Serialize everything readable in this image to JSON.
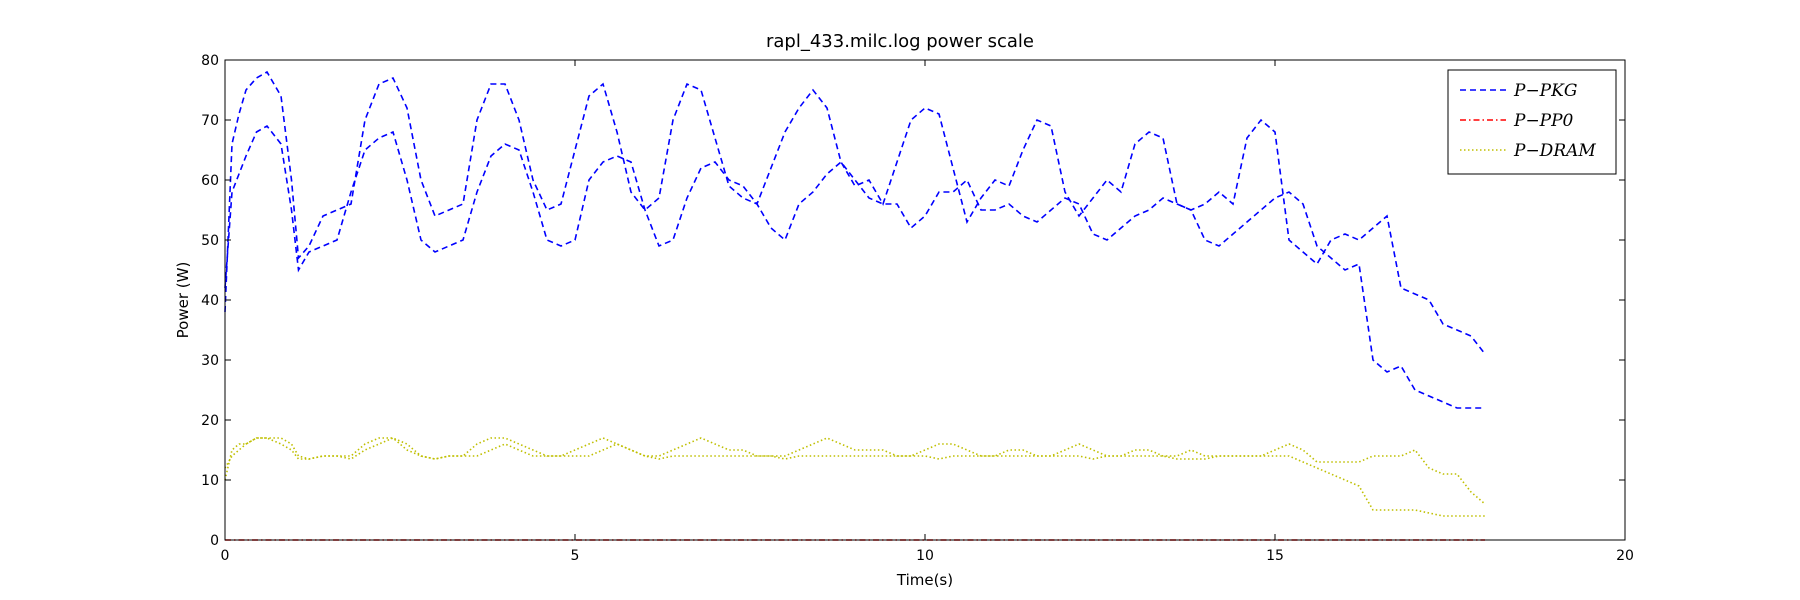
{
  "chart_data": {
    "type": "line",
    "title": "rapl_433.milc.log power scale",
    "xlabel": "Time(s)",
    "ylabel": "Power (W)",
    "xlim": [
      0,
      20
    ],
    "ylim": [
      0,
      80
    ],
    "xticks": [
      0,
      5,
      10,
      15,
      20
    ],
    "yticks": [
      0,
      10,
      20,
      30,
      40,
      50,
      60,
      70,
      80
    ],
    "grid": false,
    "legend_position": "top-right",
    "series": [
      {
        "name": "P−PKG",
        "color": "#0000ff",
        "style": "dashed",
        "x": [
          0,
          0.1,
          0.2,
          0.3,
          0.45,
          0.6,
          0.8,
          0.95,
          1.05,
          1.2,
          1.4,
          1.6,
          1.8,
          2.0,
          2.2,
          2.4,
          2.6,
          2.8,
          3.0,
          3.2,
          3.4,
          3.6,
          3.8,
          4.0,
          4.2,
          4.4,
          4.6,
          4.8,
          5.0,
          5.2,
          5.4,
          5.6,
          5.8,
          6.0,
          6.2,
          6.4,
          6.6,
          6.8,
          7.0,
          7.2,
          7.4,
          7.6,
          7.8,
          8.0,
          8.2,
          8.4,
          8.6,
          8.8,
          9.0,
          9.2,
          9.4,
          9.6,
          9.8,
          10.0,
          10.2,
          10.4,
          10.6,
          10.8,
          11.0,
          11.2,
          11.4,
          11.6,
          11.8,
          12.0,
          12.2,
          12.4,
          12.6,
          12.8,
          13.0,
          13.2,
          13.4,
          13.6,
          13.8,
          14.0,
          14.2,
          14.4,
          14.6,
          14.8,
          15.0,
          15.2,
          15.4,
          15.6,
          15.8,
          16.0,
          16.2,
          16.4,
          16.6,
          16.8,
          17.0,
          17.2,
          17.4,
          17.6,
          17.8,
          18.0
        ],
        "y": [
          38,
          66,
          71,
          75,
          77,
          78,
          74,
          60,
          47,
          49,
          54,
          55,
          56,
          70,
          76,
          77,
          72,
          60,
          54,
          55,
          56,
          70,
          76,
          76,
          70,
          60,
          55,
          56,
          65,
          74,
          76,
          68,
          58,
          55,
          57,
          70,
          76,
          75,
          67,
          59,
          57,
          56,
          62,
          68,
          72,
          75,
          72,
          63,
          59,
          60,
          56,
          63,
          70,
          72,
          71,
          62,
          53,
          57,
          60,
          59,
          65,
          70,
          69,
          58,
          54,
          57,
          60,
          58,
          66,
          68,
          67,
          56,
          55,
          56,
          58,
          56,
          67,
          70,
          68,
          50,
          48,
          46,
          50,
          51,
          50,
          52,
          54,
          42,
          41,
          40,
          36,
          35,
          34,
          31
        ]
      },
      {
        "name": "P−PKG",
        "color": "#0000ff",
        "style": "dashed",
        "x": [
          0,
          0.1,
          0.2,
          0.3,
          0.45,
          0.6,
          0.8,
          0.95,
          1.05,
          1.2,
          1.4,
          1.6,
          1.8,
          2.0,
          2.2,
          2.4,
          2.6,
          2.8,
          3.0,
          3.2,
          3.4,
          3.6,
          3.8,
          4.0,
          4.2,
          4.4,
          4.6,
          4.8,
          5.0,
          5.2,
          5.4,
          5.6,
          5.8,
          6.0,
          6.2,
          6.4,
          6.6,
          6.8,
          7.0,
          7.2,
          7.4,
          7.6,
          7.8,
          8.0,
          8.2,
          8.4,
          8.6,
          8.8,
          9.0,
          9.2,
          9.4,
          9.6,
          9.8,
          10.0,
          10.2,
          10.4,
          10.6,
          10.8,
          11.0,
          11.2,
          11.4,
          11.6,
          11.8,
          12.0,
          12.2,
          12.4,
          12.6,
          12.8,
          13.0,
          13.2,
          13.4,
          13.6,
          13.8,
          14.0,
          14.2,
          14.4,
          14.6,
          14.8,
          15.0,
          15.2,
          15.4,
          15.6,
          15.8,
          16.0,
          16.2,
          16.4,
          16.6,
          16.8,
          17.0,
          17.2,
          17.4,
          17.6,
          17.8,
          18.0
        ],
        "y": [
          42,
          58,
          61,
          64,
          68,
          69,
          66,
          55,
          45,
          48,
          49,
          50,
          58,
          65,
          67,
          68,
          60,
          50,
          48,
          49,
          50,
          58,
          64,
          66,
          65,
          58,
          50,
          49,
          50,
          60,
          63,
          64,
          63,
          55,
          49,
          50,
          57,
          62,
          63,
          60,
          59,
          56,
          52,
          50,
          56,
          58,
          61,
          63,
          60,
          57,
          56,
          56,
          52,
          54,
          58,
          58,
          60,
          55,
          55,
          56,
          54,
          53,
          55,
          57,
          56,
          51,
          50,
          52,
          54,
          55,
          57,
          56,
          55,
          50,
          49,
          51,
          53,
          55,
          57,
          58,
          56,
          49,
          47,
          45,
          46,
          30,
          28,
          29,
          25,
          24,
          23,
          22,
          22,
          22
        ]
      },
      {
        "name": "P−PP0",
        "color": "#ff0000",
        "style": "dash-dot",
        "x": [
          0,
          18
        ],
        "y": [
          0,
          0
        ]
      },
      {
        "name": "P−DRAM",
        "color": "#bfbf00",
        "style": "dotted",
        "x": [
          0,
          0.1,
          0.2,
          0.3,
          0.45,
          0.6,
          0.8,
          0.95,
          1.05,
          1.2,
          1.4,
          1.6,
          1.8,
          2.0,
          2.2,
          2.4,
          2.6,
          2.8,
          3.0,
          3.2,
          3.4,
          3.6,
          3.8,
          4.0,
          4.2,
          4.4,
          4.6,
          4.8,
          5.0,
          5.2,
          5.4,
          5.6,
          5.8,
          6.0,
          6.2,
          6.4,
          6.6,
          6.8,
          7.0,
          7.2,
          7.4,
          7.6,
          7.8,
          8.0,
          8.2,
          8.4,
          8.6,
          8.8,
          9.0,
          9.2,
          9.4,
          9.6,
          9.8,
          10.0,
          10.2,
          10.4,
          10.6,
          10.8,
          11.0,
          11.2,
          11.4,
          11.6,
          11.8,
          12.0,
          12.2,
          12.4,
          12.6,
          12.8,
          13.0,
          13.2,
          13.4,
          13.6,
          13.8,
          14.0,
          14.2,
          14.4,
          14.6,
          14.8,
          15.0,
          15.2,
          15.4,
          15.6,
          15.8,
          16.0,
          16.2,
          16.4,
          16.6,
          16.8,
          17.0,
          17.2,
          17.4,
          17.6,
          17.8,
          18.0
        ],
        "y": [
          10,
          15,
          16,
          16,
          17,
          17,
          17,
          16,
          14,
          13.5,
          14,
          14,
          14,
          16,
          17,
          17,
          16,
          14,
          13.5,
          14,
          14,
          16,
          17,
          17,
          16,
          15,
          14,
          14,
          15,
          16,
          17,
          16,
          15,
          14,
          14,
          15,
          16,
          17,
          16,
          15,
          15,
          14,
          14,
          14,
          15,
          16,
          17,
          16,
          15,
          15,
          15,
          14,
          14,
          15,
          16,
          16,
          15,
          14,
          14,
          15,
          15,
          14,
          14,
          15,
          16,
          15,
          14,
          14,
          15,
          15,
          14,
          14,
          15,
          14,
          14,
          14,
          14,
          14,
          15,
          16,
          15,
          13,
          13,
          13,
          13,
          14,
          14,
          14,
          15,
          12,
          11,
          11,
          8,
          6
        ]
      },
      {
        "name": "P−DRAM",
        "color": "#bfbf00",
        "style": "dotted",
        "x": [
          0,
          0.1,
          0.2,
          0.3,
          0.45,
          0.6,
          0.8,
          0.95,
          1.05,
          1.2,
          1.4,
          1.6,
          1.8,
          2.0,
          2.2,
          2.4,
          2.6,
          2.8,
          3.0,
          3.2,
          3.4,
          3.6,
          3.8,
          4.0,
          4.2,
          4.4,
          4.6,
          4.8,
          5.0,
          5.2,
          5.4,
          5.6,
          5.8,
          6.0,
          6.2,
          6.4,
          6.6,
          6.8,
          7.0,
          7.2,
          7.4,
          7.6,
          7.8,
          8.0,
          8.2,
          8.4,
          8.6,
          8.8,
          9.0,
          9.2,
          9.4,
          9.6,
          9.8,
          10.0,
          10.2,
          10.4,
          10.6,
          10.8,
          11.0,
          11.2,
          11.4,
          11.6,
          11.8,
          12.0,
          12.2,
          12.4,
          12.6,
          12.8,
          13.0,
          13.2,
          13.4,
          13.6,
          13.8,
          14.0,
          14.2,
          14.4,
          14.6,
          14.8,
          15.0,
          15.2,
          15.4,
          15.6,
          15.8,
          16.0,
          16.2,
          16.4,
          16.6,
          16.8,
          17.0,
          17.2,
          17.4,
          17.6,
          17.8,
          18.0
        ],
        "y": [
          12,
          14,
          15,
          16,
          17,
          17,
          16,
          15,
          13.5,
          13.5,
          14,
          14,
          13.5,
          15,
          16,
          17,
          15,
          14,
          13.5,
          14,
          14,
          14,
          15,
          16,
          15,
          14,
          14,
          14,
          14,
          14,
          15,
          16,
          15,
          14,
          13.5,
          14,
          14,
          14,
          14,
          14,
          14,
          14,
          14,
          13.5,
          14,
          14,
          14,
          14,
          14,
          14,
          14,
          14,
          14,
          14,
          13.5,
          14,
          14,
          14,
          14,
          14,
          14,
          14,
          14,
          14,
          14,
          13.5,
          14,
          14,
          14,
          14,
          14,
          13.5,
          13.5,
          13.5,
          14,
          14,
          14,
          14,
          14,
          14,
          13,
          12,
          11,
          10,
          9,
          5,
          5,
          5,
          5,
          4.5,
          4,
          4,
          4,
          4
        ]
      }
    ]
  }
}
